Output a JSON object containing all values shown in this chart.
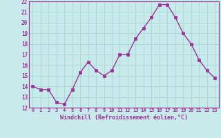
{
  "x": [
    0,
    1,
    2,
    3,
    4,
    5,
    6,
    7,
    8,
    9,
    10,
    11,
    12,
    13,
    14,
    15,
    16,
    17,
    18,
    19,
    20,
    21,
    22,
    23
  ],
  "y": [
    14.0,
    13.7,
    13.7,
    12.5,
    12.3,
    13.7,
    15.3,
    16.3,
    15.5,
    15.0,
    15.5,
    17.0,
    17.0,
    18.5,
    19.5,
    20.5,
    21.7,
    21.7,
    20.5,
    19.0,
    18.0,
    16.5,
    15.5,
    14.8
  ],
  "line_color": "#993399",
  "marker_color": "#993399",
  "bg_color": "#c8eaea",
  "grid_color": "#b0d8d8",
  "xlabel": "Windchill (Refroidissement éolien,°C)",
  "xlabel_color": "#993399",
  "tick_color": "#993399",
  "spine_color": "#993399",
  "ylim": [
    12,
    22
  ],
  "xlim": [
    -0.5,
    23.5
  ],
  "yticks": [
    12,
    13,
    14,
    15,
    16,
    17,
    18,
    19,
    20,
    21,
    22
  ],
  "xticks": [
    0,
    1,
    2,
    3,
    4,
    5,
    6,
    7,
    8,
    9,
    10,
    11,
    12,
    13,
    14,
    15,
    16,
    17,
    18,
    19,
    20,
    21,
    22,
    23
  ],
  "xtick_labels": [
    "0",
    "1",
    "2",
    "3",
    "4",
    "5",
    "6",
    "7",
    "8",
    "9",
    "10",
    "11",
    "12",
    "13",
    "14",
    "15",
    "16",
    "17",
    "18",
    "19",
    "20",
    "21",
    "22",
    "23"
  ],
  "ytick_labels": [
    "12",
    "13",
    "14",
    "15",
    "16",
    "17",
    "18",
    "19",
    "20",
    "21",
    "22"
  ]
}
